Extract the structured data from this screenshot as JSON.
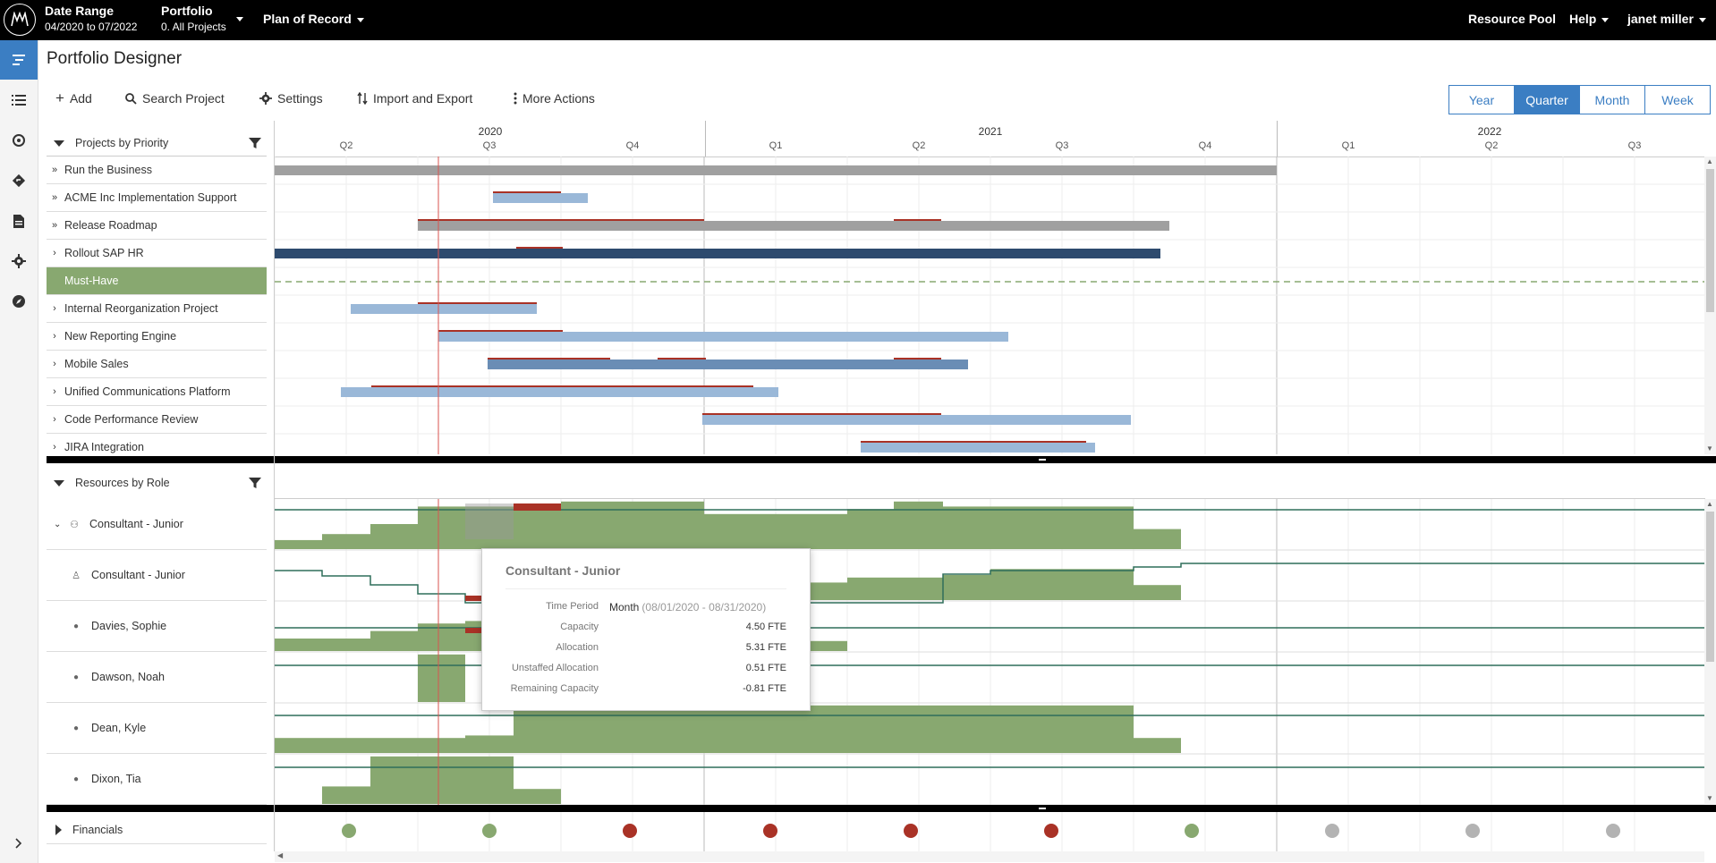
{
  "topbar": {
    "date_range_label": "Date Range",
    "date_range_value": "04/2020 to 07/2022",
    "portfolio_label": "Portfolio",
    "portfolio_value": "0. All Projects",
    "plan": "Plan of Record",
    "resource_pool": "Resource Pool",
    "help": "Help",
    "user": "janet miller"
  },
  "page_title": "Portfolio Designer",
  "toolbar": {
    "add": "Add",
    "search": "Search Project",
    "settings": "Settings",
    "import_export": "Import and Export",
    "more": "More Actions"
  },
  "scale_buttons": [
    "Year",
    "Quarter",
    "Month",
    "Week"
  ],
  "scale_active": "Quarter",
  "timeline": {
    "years": [
      "2020",
      "2021",
      "2022"
    ],
    "quarters": [
      "Q2",
      "Q3",
      "Q4",
      "Q1",
      "Q2",
      "Q3",
      "Q4",
      "Q1",
      "Q2",
      "Q3"
    ]
  },
  "projects_header": "Projects by Priority",
  "projects": [
    {
      "label": "Run the Business",
      "chevron": "»"
    },
    {
      "label": "ACME Inc Implementation Support",
      "chevron": "»"
    },
    {
      "label": "Release Roadmap",
      "chevron": "»"
    },
    {
      "label": "Rollout SAP HR",
      "chevron": "›"
    },
    {
      "label": "Must-Have",
      "chevron": ""
    },
    {
      "label": "Internal Reorganization Project",
      "chevron": "›"
    },
    {
      "label": "New Reporting Engine",
      "chevron": "›"
    },
    {
      "label": "Mobile Sales",
      "chevron": "›"
    },
    {
      "label": "Unified Communications Platform",
      "chevron": "›"
    },
    {
      "label": "Code Performance Review",
      "chevron": "›"
    },
    {
      "label": "JIRA Integration",
      "chevron": "›"
    }
  ],
  "resources_header": "Resources by Role",
  "resources": [
    {
      "label": "Consultant - Junior",
      "icon": "role-group-icon"
    },
    {
      "label": "Consultant - Junior",
      "icon": "person-outline-icon"
    },
    {
      "label": "Davies, Sophie",
      "icon": "person-icon"
    },
    {
      "label": "Dawson, Noah",
      "icon": "person-icon"
    },
    {
      "label": "Dean, Kyle",
      "icon": "person-icon"
    },
    {
      "label": "Dixon, Tia",
      "icon": "person-icon"
    }
  ],
  "financials_label": "Financials",
  "financials_status": [
    "green",
    "green",
    "red",
    "red",
    "red",
    "red",
    "green",
    "gray",
    "gray",
    "gray"
  ],
  "colors": {
    "accent": "#3b7ec3",
    "green": "#88a870",
    "red": "#a93226",
    "gray": "#b3b3b3",
    "bar_gray": "#a0a0a0",
    "bar_dark": "#2d4a6e",
    "bar_light": "#9ab8d8",
    "bar_mid": "#6a8db5"
  },
  "tooltip": {
    "title": "Consultant - Junior",
    "rows": [
      {
        "k": "Time Period",
        "v": "Month",
        "extra": "(08/01/2020 - 08/31/2020)"
      },
      {
        "k": "Capacity",
        "v": "4.50 FTE"
      },
      {
        "k": "Allocation",
        "v": "5.31 FTE"
      },
      {
        "k": "Unstaffed Allocation",
        "v": "0.51 FTE"
      },
      {
        "k": "Remaining Capacity",
        "v": "-0.81 FTE"
      }
    ]
  }
}
